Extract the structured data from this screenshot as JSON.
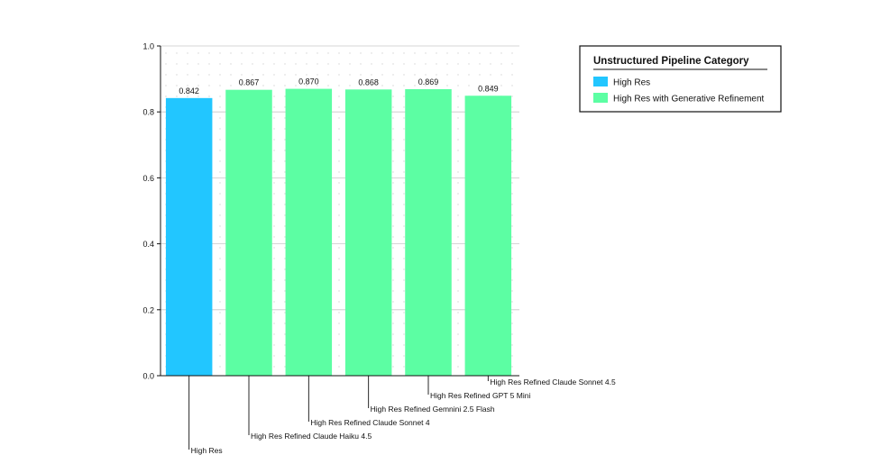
{
  "chart_data": {
    "type": "bar",
    "title": "",
    "xlabel": "",
    "ylabel": "",
    "ylim": [
      0,
      1.0
    ],
    "yticks": [
      0.0,
      0.2,
      0.4,
      0.6,
      0.8,
      1.0
    ],
    "ytick_labels": [
      "0.0",
      "0.2",
      "0.4",
      "0.6",
      "0.8",
      "1.0"
    ],
    "grid": true,
    "categories": [
      "High Res",
      "High Res Refined Claude Haiku 4.5",
      "High Res Refined Claude Sonnet 4",
      "High Res Refined Gemnini 2.5 Flash",
      "High Res Refined GPT 5 Mini",
      "High Res Refined Claude Sonnet 4.5"
    ],
    "values": [
      0.842,
      0.867,
      0.87,
      0.868,
      0.869,
      0.849
    ],
    "value_labels": [
      "0.842",
      "0.867",
      "0.870",
      "0.868",
      "0.869",
      "0.849"
    ],
    "bar_series": [
      "High Res",
      "High Res with Generative Refinement",
      "High Res with Generative Refinement",
      "High Res with Generative Refinement",
      "High Res with Generative Refinement",
      "High Res with Generative Refinement"
    ],
    "legend": {
      "title": "Unstructured Pipeline Category",
      "placement": "top-right",
      "entries": [
        {
          "name": "High Res",
          "color": "#22c6ff"
        },
        {
          "name": "High Res with Generative Refinement",
          "color": "#5cfea3"
        }
      ]
    }
  }
}
